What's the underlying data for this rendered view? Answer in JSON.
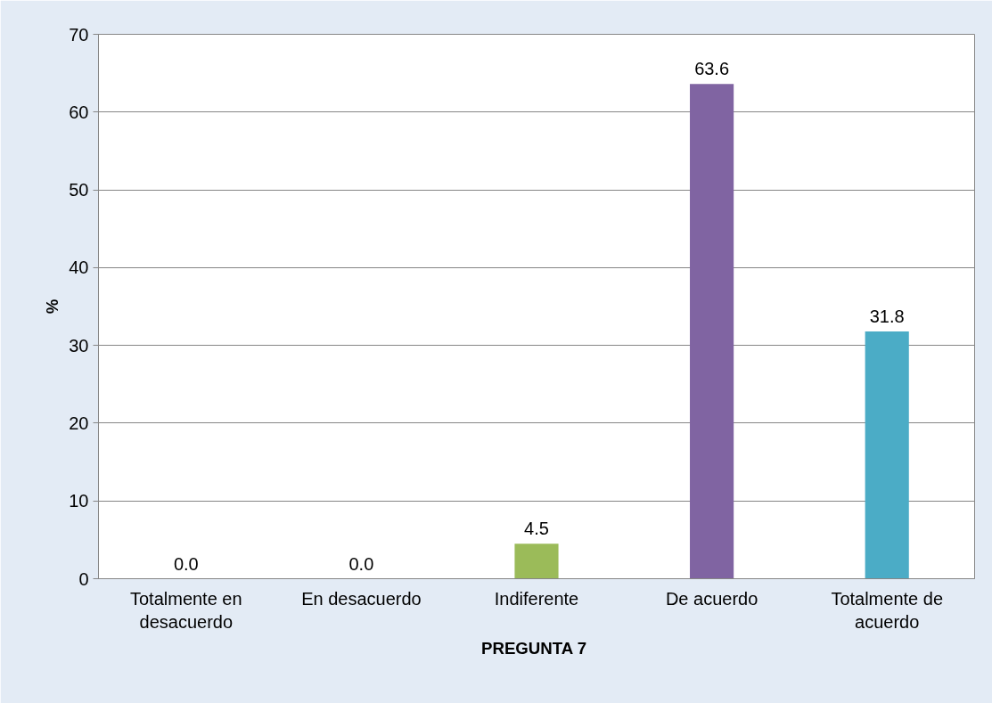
{
  "chart_data": {
    "type": "bar",
    "xlabel": "PREGUNTA  7",
    "ylabel": "%",
    "categories": [
      "Totalmente en desacuerdo",
      "En desacuerdo",
      "Indiferente",
      "De acuerdo",
      "Totalmente de acuerdo"
    ],
    "values": [
      0.0,
      0.0,
      4.5,
      63.6,
      31.8
    ],
    "colors": [
      "#4f81bd",
      "#c0504d",
      "#9bbb59",
      "#8064a2",
      "#4bacc6"
    ],
    "value_labels": [
      "0.0",
      "0.0",
      "4.5",
      "63.6",
      "31.8"
    ],
    "ylim": [
      0,
      70
    ],
    "yticks": [
      0,
      10,
      20,
      30,
      40,
      50,
      60,
      70
    ],
    "grid": "y"
  }
}
